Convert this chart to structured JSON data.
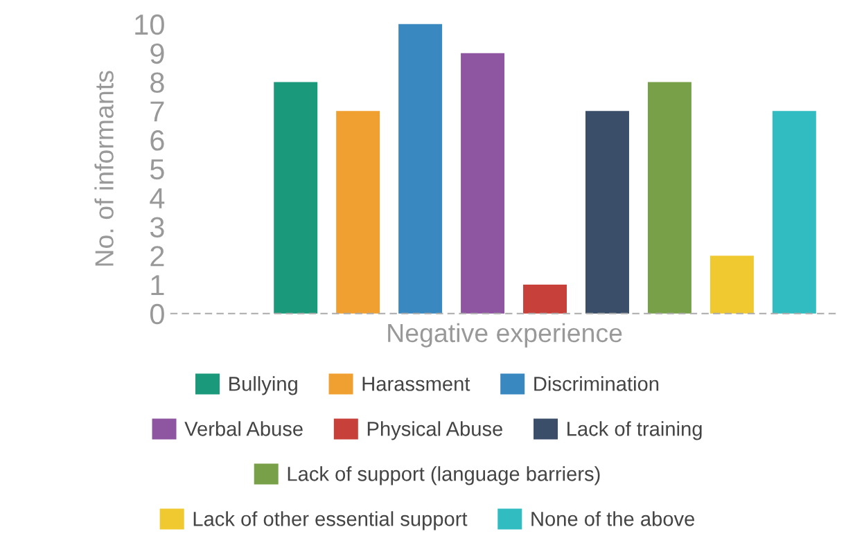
{
  "chart_data": {
    "type": "bar",
    "stacked": true,
    "xlabel": "Negative experience",
    "ylabel": "No. of informants",
    "categories": [
      null,
      null,
      null,
      null,
      null,
      null,
      null,
      null,
      null
    ],
    "series": [
      {
        "name": "Bullying",
        "color": "#1a9a7a",
        "values": [
          8,
          null,
          null,
          null,
          null,
          null,
          null,
          null,
          null
        ]
      },
      {
        "name": "Harassment",
        "color": "#f0a030",
        "values": [
          null,
          7,
          null,
          null,
          null,
          null,
          null,
          null,
          null
        ]
      },
      {
        "name": "Discrimination",
        "color": "#3a88c0",
        "values": [
          null,
          null,
          10,
          null,
          null,
          null,
          null,
          null,
          null
        ]
      },
      {
        "name": "Verbal Abuse",
        "color": "#8e55a0",
        "values": [
          null,
          null,
          null,
          9,
          null,
          null,
          null,
          null,
          null
        ]
      },
      {
        "name": "Physical Abuse",
        "color": "#c8403a",
        "values": [
          null,
          null,
          null,
          null,
          1,
          null,
          null,
          null,
          null
        ]
      },
      {
        "name": "Lack of training",
        "color": "#3a4e6a",
        "values": [
          null,
          null,
          null,
          null,
          null,
          7,
          null,
          null,
          null
        ]
      },
      {
        "name": "Lack of support (language barriers)",
        "color": "#78a048",
        "values": [
          null,
          null,
          null,
          null,
          null,
          null,
          8,
          null,
          null
        ]
      },
      {
        "name": "Lack of other essential support",
        "color": "#f0c830",
        "values": [
          null,
          null,
          null,
          null,
          null,
          null,
          null,
          2,
          null
        ]
      },
      {
        "name": "None of the above",
        "color": "#30bcc0",
        "values": [
          null,
          null,
          null,
          null,
          null,
          null,
          null,
          null,
          7
        ]
      }
    ],
    "ylim": [
      0,
      10
    ],
    "yticks": [
      0,
      1,
      2,
      3,
      4,
      5,
      6,
      7,
      8,
      9,
      10
    ],
    "grid": false,
    "legend": "bottom",
    "tick_labels": "y"
  }
}
